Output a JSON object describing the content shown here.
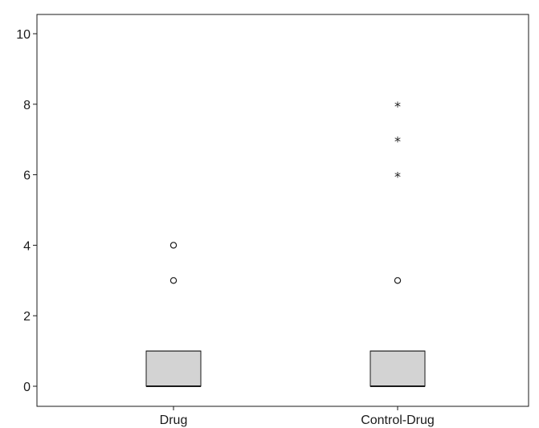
{
  "chart_data": {
    "type": "boxplot",
    "title": "",
    "xlabel": "",
    "ylabel": "",
    "ylim": [
      -0.6,
      10.5
    ],
    "yticks": [
      0,
      2,
      4,
      6,
      8,
      10
    ],
    "grid": false,
    "categories": [
      "Drug",
      "Control-Drug"
    ],
    "boxes": [
      {
        "category": "Drug",
        "min": 0,
        "q1": 0,
        "median": 0,
        "q3": 1,
        "max": 1,
        "outliers": [
          3,
          4
        ],
        "extremes": []
      },
      {
        "category": "Control-Drug",
        "min": 0,
        "q1": 0,
        "median": 0,
        "q3": 1,
        "max": 1,
        "outliers": [
          3
        ],
        "extremes": [
          6,
          7,
          8
        ]
      }
    ],
    "colors": {
      "box_fill": "#d3d3d3",
      "stroke": "#1a1a1a"
    }
  }
}
